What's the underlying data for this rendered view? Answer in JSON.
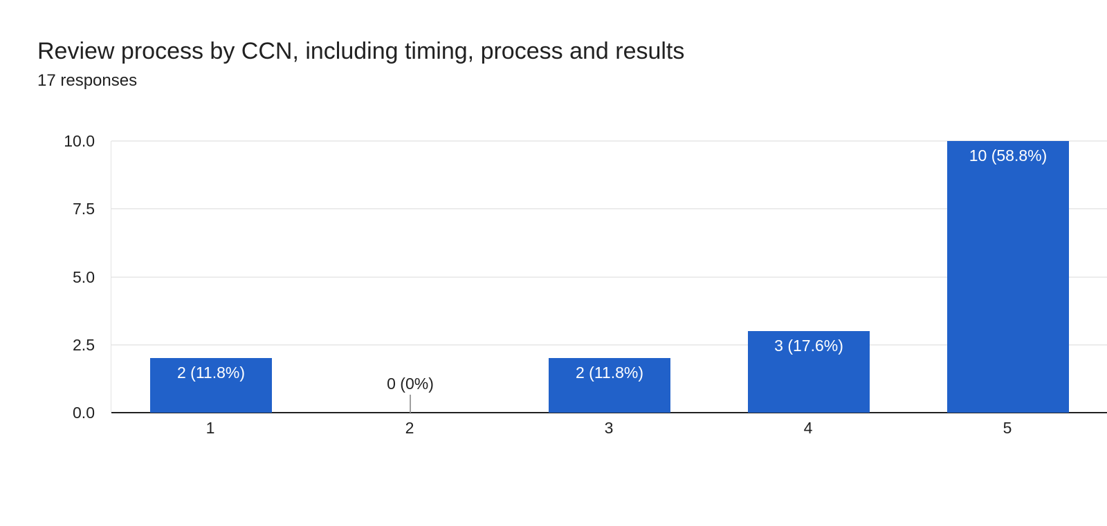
{
  "chart_data": {
    "type": "bar",
    "title": "Review process by CCN, including timing, process and results",
    "subtitle": "17 responses",
    "categories": [
      "1",
      "2",
      "3",
      "4",
      "5"
    ],
    "values": [
      2,
      0,
      2,
      3,
      10
    ],
    "bar_labels": [
      "2 (11.8%)",
      "0 (0%)",
      "2 (11.8%)",
      "3 (17.6%)",
      "10 (58.8%)"
    ],
    "percentages": [
      11.8,
      0,
      11.8,
      17.6,
      58.8
    ],
    "total_responses": 17,
    "xlabel": "",
    "ylabel": "",
    "ylim": [
      0,
      10
    ],
    "yticks": [
      "0.0",
      "2.5",
      "5.0",
      "7.5",
      "10.0"
    ],
    "grid": "horizontal",
    "legend": "none"
  },
  "colors": {
    "bar": "#2161c9",
    "text": "#212121",
    "grid": "#ececec",
    "baseline": "#212121",
    "zero_stub": "#9e9e9e",
    "bar_label_text": "#ffffff",
    "background": "#ffffff"
  }
}
